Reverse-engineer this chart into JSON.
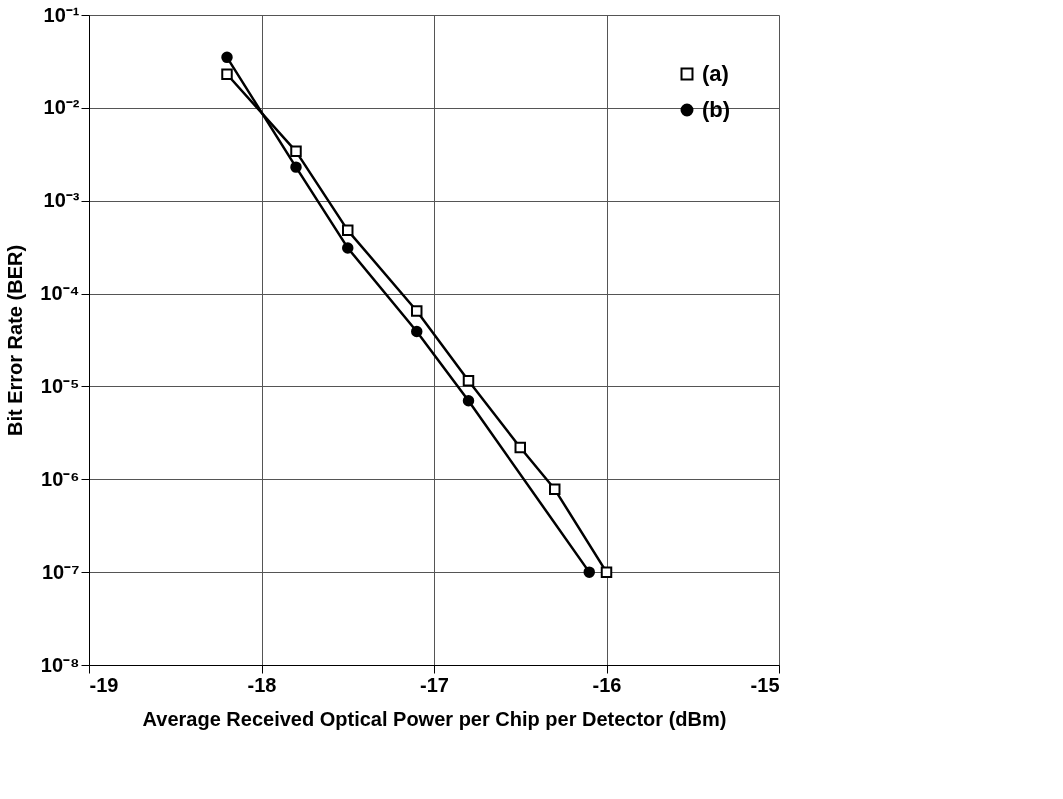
{
  "chart_data": {
    "type": "line",
    "xlabel": "Average Received Optical Power per Chip per Detector (dBm)",
    "ylabel": "Bit Error Rate (BER)",
    "log": "y",
    "grid": true,
    "legend": "top right",
    "line_style": "solid",
    "xlim": [
      -19,
      -15
    ],
    "xticks": [
      {
        "value": -19,
        "label": "-19"
      },
      {
        "value": -18,
        "label": "-18"
      },
      {
        "value": -17,
        "label": "-17"
      },
      {
        "value": -16,
        "label": "-16"
      },
      {
        "value": -15,
        "label": "-15"
      }
    ],
    "ylim": [
      1e-08,
      0.1
    ],
    "yticks": [
      {
        "value": 0.1,
        "label": "10⁻¹"
      },
      {
        "value": 0.01,
        "label": "10⁻²"
      },
      {
        "value": 0.001,
        "label": "10⁻³"
      },
      {
        "value": 0.0001,
        "label": "10⁻⁴"
      },
      {
        "value": 1e-05,
        "label": "10⁻⁵"
      },
      {
        "value": 1e-06,
        "label": "10⁻⁶"
      },
      {
        "value": 1e-07,
        "label": "10⁻⁷"
      },
      {
        "value": 1e-08,
        "label": "10⁻⁸"
      }
    ],
    "series": [
      {
        "name": "(a)",
        "color": "#000000",
        "marker": "square",
        "x": [
          -18.2,
          -17.8,
          -17.5,
          -17.1,
          -16.8,
          -16.5,
          -16.3,
          -16.0
        ],
        "values": [
          0.023,
          0.0034,
          0.00048,
          6.5e-05,
          1.15e-05,
          2.2e-06,
          7.8e-07,
          1e-07
        ]
      },
      {
        "name": "(b)",
        "color": "#000000",
        "marker": "circle",
        "x": [
          -18.2,
          -17.8,
          -17.5,
          -17.1,
          -16.8,
          -16.1
        ],
        "values": [
          0.035,
          0.0023,
          0.00031,
          3.9e-05,
          7e-06,
          1e-07
        ]
      }
    ]
  }
}
